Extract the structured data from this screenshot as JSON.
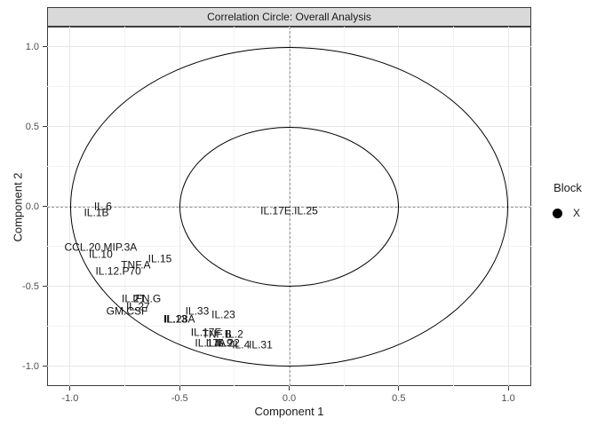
{
  "window": {
    "background": "#ffffff"
  },
  "strip": {
    "title": "Correlation Circle: Overall Analysis"
  },
  "legend": {
    "title": "Block",
    "items": [
      {
        "label": "X",
        "shape": "circle",
        "color": "#000000"
      }
    ]
  },
  "colors": {
    "strip_fill": "#d9d9d9",
    "panel_border": "#3c3c3c",
    "grid_major": "#e7e7e7",
    "grid_minor": "#f3f3f3",
    "reference_dashed": "#999999",
    "circle_stroke": "#000000",
    "tick_text": "#4d4d4d",
    "label_text": "#111111"
  },
  "chart_data": {
    "type": "scatter",
    "title": "Correlation Circle: Overall Analysis",
    "xlabel": "Component 1",
    "ylabel": "Component 2",
    "xlim": [
      -1.105,
      1.105
    ],
    "ylim": [
      -1.125,
      1.125
    ],
    "xticks": [
      -1.0,
      -0.5,
      0.0,
      0.5,
      1.0
    ],
    "xtick_labels": [
      "-1.0",
      "-0.5",
      "0.0",
      "0.5",
      "1.0"
    ],
    "yticks": [
      -1.0,
      -0.5,
      0.0,
      0.5,
      1.0
    ],
    "ytick_labels": [
      "-1.0",
      "-0.5",
      "0.0",
      "0.5",
      "1.0"
    ],
    "grid": true,
    "circles": [
      1.0,
      0.5
    ],
    "reference_lines": {
      "x": 0,
      "y": 0
    },
    "legend_position": "right",
    "points": [
      {
        "label": "IL.6",
        "x": -0.85,
        "y": 0.0
      },
      {
        "label": "IL.1B",
        "x": -0.88,
        "y": -0.04
      },
      {
        "label": "CCL.20.MIP.3A",
        "x": -0.86,
        "y": -0.26
      },
      {
        "label": "IL.10",
        "x": -0.86,
        "y": -0.3
      },
      {
        "label": "IL.15",
        "x": -0.59,
        "y": -0.33
      },
      {
        "label": "TNF.A",
        "x": -0.7,
        "y": -0.37
      },
      {
        "label": "IL.12.P70",
        "x": -0.78,
        "y": -0.41
      },
      {
        "label": "IL.21",
        "x": -0.71,
        "y": -0.58
      },
      {
        "label": "IFN.G",
        "x": -0.65,
        "y": -0.58
      },
      {
        "label": "IL.27",
        "x": -0.69,
        "y": -0.63
      },
      {
        "label": "GM.CSF",
        "x": -0.74,
        "y": -0.66
      },
      {
        "label": "IL.33",
        "x": -0.42,
        "y": -0.66
      },
      {
        "label": "IL.23",
        "x": -0.3,
        "y": -0.68
      },
      {
        "label": "IL.13",
        "x": -0.52,
        "y": -0.71
      },
      {
        "label": "IL.28A",
        "x": -0.5,
        "y": -0.71
      },
      {
        "label": "IL.17F",
        "x": -0.38,
        "y": -0.79
      },
      {
        "label": "TNF.B",
        "x": -0.33,
        "y": -0.8
      },
      {
        "label": "IL.2",
        "x": -0.25,
        "y": -0.8
      },
      {
        "label": "IL.17A",
        "x": -0.36,
        "y": -0.86
      },
      {
        "label": "IL.5",
        "x": -0.34,
        "y": -0.86
      },
      {
        "label": "IL.9",
        "x": -0.3,
        "y": -0.86
      },
      {
        "label": "IL.22",
        "x": -0.28,
        "y": -0.86
      },
      {
        "label": "IL.4",
        "x": -0.22,
        "y": -0.87
      },
      {
        "label": "IL.31",
        "x": -0.13,
        "y": -0.87
      },
      {
        "label": "IL.17E.IL.25",
        "x": 0.0,
        "y": -0.03
      }
    ]
  }
}
